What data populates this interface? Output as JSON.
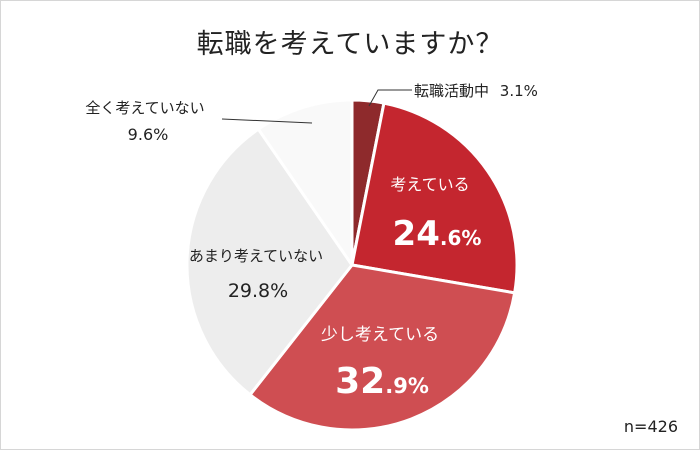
{
  "chart_data": {
    "type": "pie",
    "title": "転職を考えていますか？",
    "note": "n=426",
    "unit": "%",
    "slices": [
      {
        "label": "転職活動中",
        "value": 3.1,
        "value_text": "3.1%",
        "color": "#8e2a2c"
      },
      {
        "label": "考えている",
        "value": 24.6,
        "value_int": "24",
        "value_dec": ".6%",
        "color": "#c4262f"
      },
      {
        "label": "少し考えている",
        "value": 32.9,
        "value_int": "32",
        "value_dec": ".9%",
        "color": "#cf4e52"
      },
      {
        "label": "あまり考えていない",
        "value": 29.8,
        "value_text": "29.8%",
        "color": "#ededed"
      },
      {
        "label": "全く考えていない",
        "value": 9.6,
        "value_text": "9.6%",
        "color": "#f9f9f9"
      }
    ]
  }
}
